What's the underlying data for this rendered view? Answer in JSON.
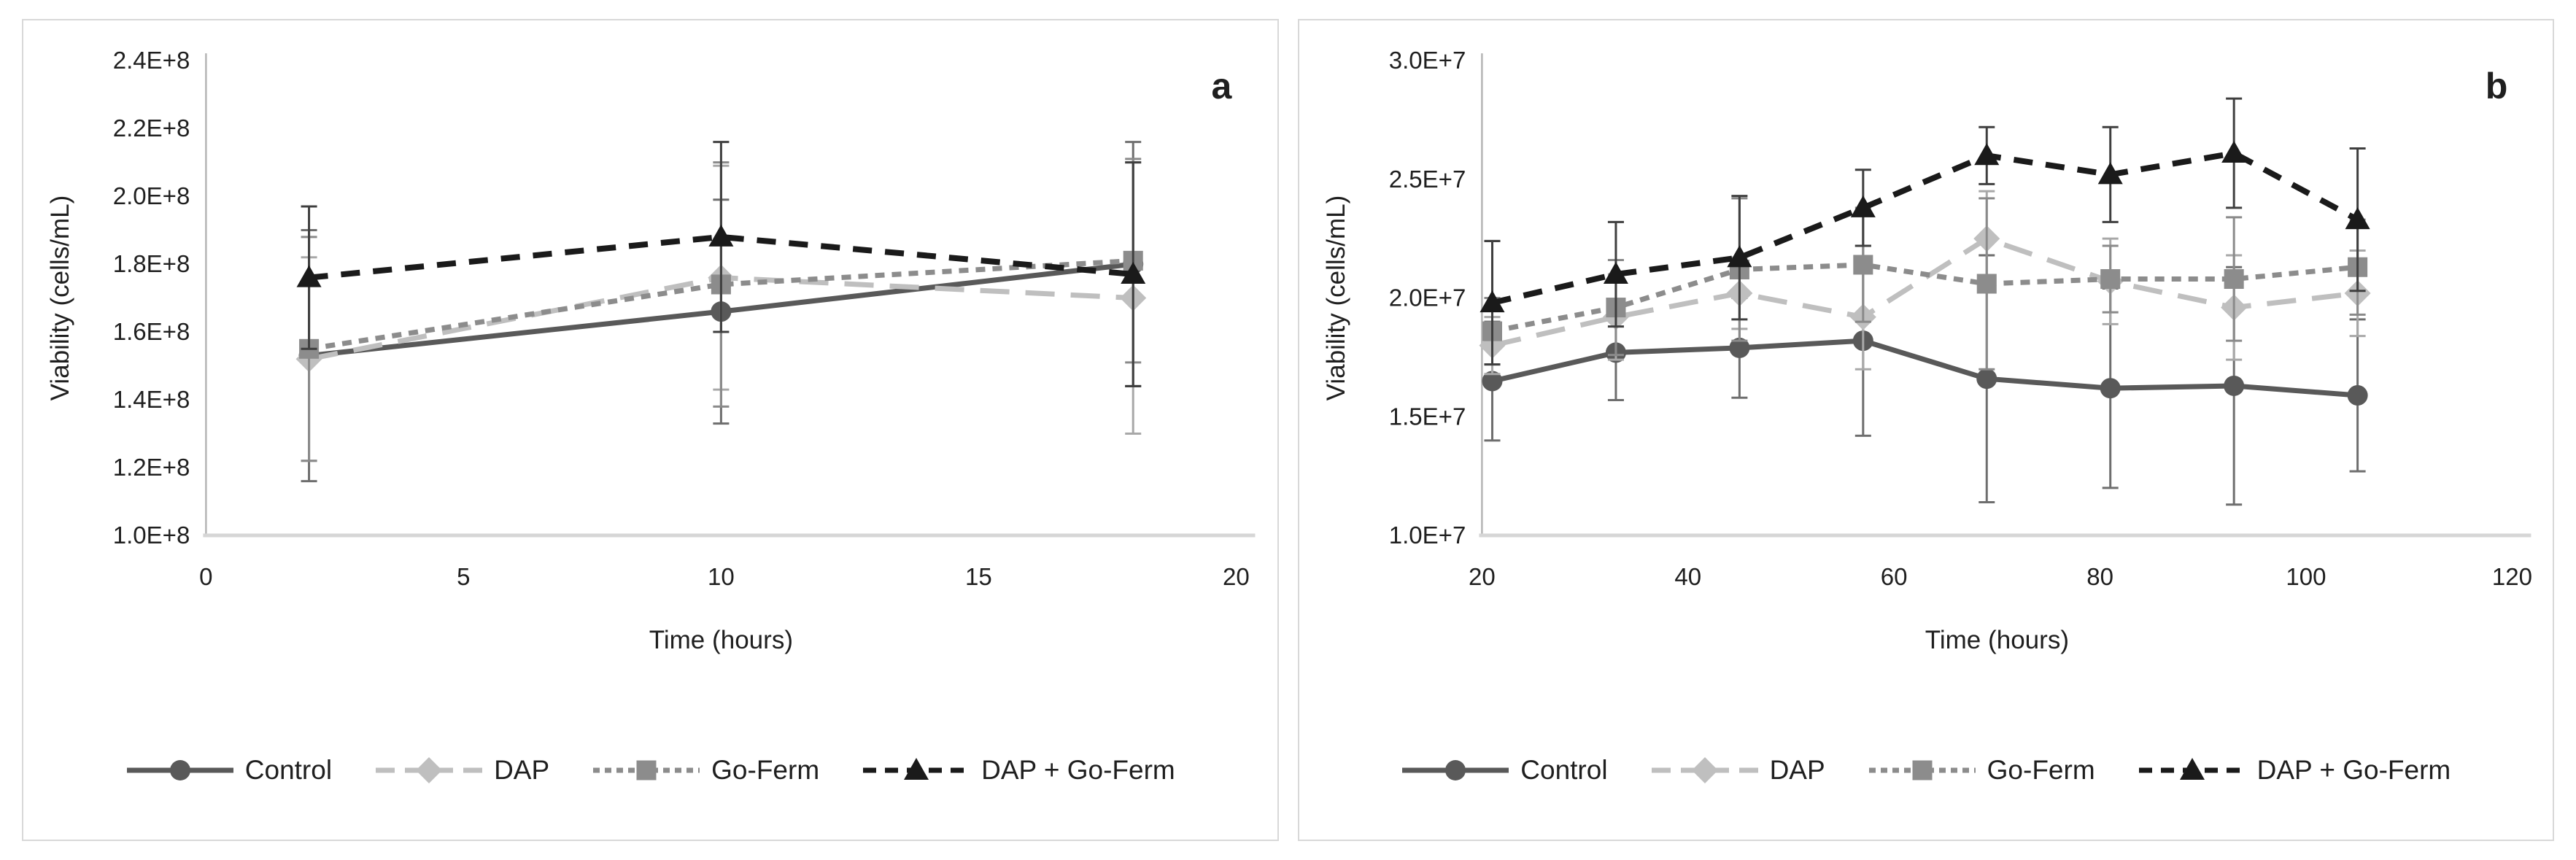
{
  "figure": {
    "panels": [
      {
        "panel_letter": "a"
      },
      {
        "panel_letter": "b"
      }
    ],
    "text_color": "#1f1f1f",
    "panel_border_color": "#d8d8d8",
    "axis_line_color": "#b5b5b5",
    "baseline_color": "#d6d6d6"
  },
  "chart_data": [
    {
      "type": "line",
      "panel_label": "a",
      "title": "",
      "xlabel": "Time (hours)",
      "ylabel": "Viability (cells/mL)",
      "xlim": [
        0,
        20
      ],
      "ylim": [
        100000000.0,
        240000000.0
      ],
      "x_ticks": [
        "0",
        "5",
        "10",
        "15",
        "20"
      ],
      "x_tick_values": [
        0,
        5,
        10,
        15,
        20
      ],
      "y_ticks": [
        "1.0E+8",
        "1.2E+8",
        "1.4E+8",
        "1.6E+8",
        "1.8E+8",
        "2.0E+8",
        "2.2E+8",
        "2.4E+8"
      ],
      "y_tick_values": [
        100000000.0,
        120000000.0,
        140000000.0,
        160000000.0,
        180000000.0,
        200000000.0,
        220000000.0,
        240000000.0
      ],
      "grid": false,
      "legend_position": "bottom",
      "error_bars": true,
      "x": [
        2,
        10,
        18
      ],
      "series": [
        {
          "name": "Control",
          "marker": "circle",
          "color": "#595959",
          "error_color": "#6e6e6e",
          "line_style": "solid",
          "values": [
            153000000.0,
            166000000.0,
            180000000.0
          ],
          "errors": [
            37000000.0,
            33000000.0,
            36000000.0
          ]
        },
        {
          "name": "DAP",
          "marker": "diamond",
          "color": "#bfbfbf",
          "error_color": "#a8a8a8",
          "line_style": "long-dash",
          "values": [
            152000000.0,
            176000000.0,
            170000000.0
          ],
          "errors": [
            30000000.0,
            33000000.0,
            40000000.0
          ]
        },
        {
          "name": "Go-Ferm",
          "marker": "square",
          "color": "#8c8c8c",
          "error_color": "#8a8a8a",
          "line_style": "short-dash",
          "values": [
            155000000.0,
            174000000.0,
            181000000.0
          ],
          "errors": [
            33000000.0,
            36000000.0,
            30000000.0
          ]
        },
        {
          "name": "DAP + Go-Ferm",
          "marker": "triangle",
          "color": "#1a1a1a",
          "error_color": "#3f3f3f",
          "line_style": "dash",
          "values": [
            176000000.0,
            188000000.0,
            177000000.0
          ],
          "errors": [
            21000000.0,
            28000000.0,
            33000000.0
          ]
        }
      ]
    },
    {
      "type": "line",
      "panel_label": "b",
      "title": "",
      "xlabel": "Time (hours)",
      "ylabel": "Viability (cells/mL)",
      "xlim": [
        20,
        120
      ],
      "ylim": [
        10000000.0,
        30000000.0
      ],
      "x_ticks": [
        "20",
        "40",
        "60",
        "80",
        "100",
        "120"
      ],
      "x_tick_values": [
        20,
        40,
        60,
        80,
        100,
        120
      ],
      "y_ticks": [
        "1.0E+7",
        "1.5E+7",
        "2.0E+7",
        "2.5E+7",
        "3.0E+7"
      ],
      "y_tick_values": [
        10000000.0,
        15000000.0,
        20000000.0,
        25000000.0,
        30000000.0
      ],
      "grid": false,
      "legend_position": "bottom",
      "error_bars": true,
      "x": [
        21,
        33,
        45,
        57,
        69,
        81,
        93,
        105
      ],
      "series": [
        {
          "name": "Control",
          "marker": "circle",
          "color": "#595959",
          "error_color": "#6e6e6e",
          "line_style": "solid",
          "values": [
            16500000.0,
            17700000.0,
            17900000.0,
            18200000.0,
            16600000.0,
            16200000.0,
            16300000.0,
            15900000.0
          ],
          "errors": [
            2500000.0,
            2000000.0,
            2100000.0,
            4000000.0,
            5200000.0,
            4200000.0,
            5000000.0,
            3200000.0
          ]
        },
        {
          "name": "DAP",
          "marker": "diamond",
          "color": "#bfbfbf",
          "error_color": "#a8a8a8",
          "line_style": "long-dash",
          "values": [
            18000000.0,
            19200000.0,
            20200000.0,
            19200000.0,
            22500000.0,
            20700000.0,
            19600000.0,
            20200000.0
          ],
          "errors": [
            1200000.0,
            1800000.0,
            1500000.0,
            2200000.0,
            2000000.0,
            1800000.0,
            2200000.0,
            1800000.0
          ]
        },
        {
          "name": "Go-Ferm",
          "marker": "square",
          "color": "#8c8c8c",
          "error_color": "#8a8a8a",
          "line_style": "short-dash",
          "values": [
            18600000.0,
            19600000.0,
            21200000.0,
            21400000.0,
            20600000.0,
            20800000.0,
            20800000.0,
            21300000.0
          ],
          "errors": [
            1400000.0,
            2000000.0,
            3000000.0,
            2400000.0,
            3600000.0,
            1400000.0,
            2600000.0,
            2000000.0
          ]
        },
        {
          "name": "DAP + Go-Ferm",
          "marker": "triangle",
          "color": "#1a1a1a",
          "error_color": "#3f3f3f",
          "line_style": "dash",
          "values": [
            19800000.0,
            21000000.0,
            21700000.0,
            23800000.0,
            26000000.0,
            25200000.0,
            26100000.0,
            23300000.0
          ],
          "errors": [
            2600000.0,
            2200000.0,
            2600000.0,
            1600000.0,
            1200000.0,
            2000000.0,
            2300000.0,
            3000000.0
          ]
        }
      ]
    }
  ]
}
